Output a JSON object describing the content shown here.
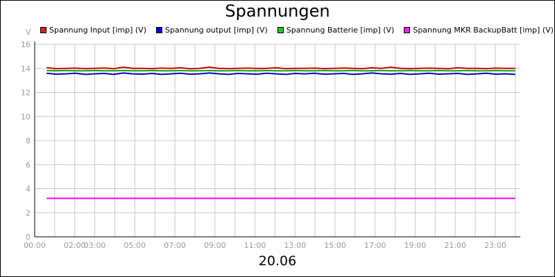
{
  "chart_data": {
    "type": "line",
    "title": "Spannungen",
    "ylabel": "V",
    "xlabel": "20.06",
    "ylim": [
      0,
      16
    ],
    "y_ticks": [
      "0",
      "2",
      "4",
      "6",
      "8",
      "10",
      "12",
      "14",
      "16"
    ],
    "x_ticks": [
      "00:00",
      "02:00",
      "03:00",
      "05:00",
      "07:00",
      "09:00",
      "11:00",
      "13:00",
      "15:00",
      "17:00",
      "19:00",
      "21:00",
      "23:00"
    ],
    "x_tick_hours": [
      0,
      2,
      3,
      5,
      7,
      9,
      11,
      13,
      15,
      17,
      19,
      21,
      23
    ],
    "x_range_hours": [
      0,
      24.25
    ],
    "grid": true,
    "legend_position": "top",
    "series": [
      {
        "name": "Spannung Input [imp] (V)",
        "color": "#cc0000",
        "values": [
          14.05,
          13.98,
          14.0,
          14.02,
          13.98,
          14.0,
          14.03,
          13.97,
          14.1,
          14.0,
          14.0,
          13.98,
          14.02,
          14.0,
          14.05,
          13.97,
          14.0,
          14.1,
          14.0,
          13.98,
          14.0,
          14.02,
          13.99,
          14.0,
          14.05,
          13.98,
          14.0,
          14.0,
          14.02,
          13.98,
          14.0,
          14.03,
          14.0,
          13.98,
          14.05,
          14.0,
          14.1,
          14.0,
          13.98,
          14.0,
          14.02,
          14.0,
          13.97,
          14.05,
          14.0,
          14.0,
          13.98,
          14.02,
          14.0,
          14.0
        ]
      },
      {
        "name": "Spannung output [imp] (V)",
        "color": "#0000cc",
        "values": [
          13.6,
          13.52,
          13.55,
          13.6,
          13.5,
          13.55,
          13.58,
          13.5,
          13.62,
          13.55,
          13.52,
          13.58,
          13.5,
          13.55,
          13.6,
          13.52,
          13.55,
          13.62,
          13.55,
          13.5,
          13.58,
          13.55,
          13.52,
          13.6,
          13.55,
          13.5,
          13.58,
          13.55,
          13.6,
          13.52,
          13.55,
          13.58,
          13.5,
          13.55,
          13.62,
          13.55,
          13.52,
          13.58,
          13.5,
          13.55,
          13.6,
          13.52,
          13.55,
          13.58,
          13.5,
          13.55,
          13.6,
          13.52,
          13.55,
          13.5
        ]
      },
      {
        "name": "Spannung Batterie [imp] (V)",
        "color": "#00aa00",
        "values": [
          13.82,
          13.8,
          13.82,
          13.8,
          13.8,
          13.82,
          13.8,
          13.8,
          13.82,
          13.8,
          13.8,
          13.82,
          13.8,
          13.8,
          13.82,
          13.8,
          13.8,
          13.82,
          13.8,
          13.8,
          13.82,
          13.8,
          13.8,
          13.82,
          13.8,
          13.8,
          13.82,
          13.8,
          13.8,
          13.82,
          13.8,
          13.8,
          13.82,
          13.8,
          13.8,
          13.82,
          13.8,
          13.8,
          13.82,
          13.8,
          13.8,
          13.82,
          13.8,
          13.8,
          13.82,
          13.8,
          13.8,
          13.82,
          13.8,
          13.8
        ]
      },
      {
        "name": "Spannung MKR BackupBatt [imp] (V)",
        "color": "#ff00ff",
        "values": [
          3.2,
          3.2,
          3.2,
          3.2,
          3.2,
          3.2,
          3.2,
          3.2,
          3.2,
          3.2,
          3.2,
          3.2,
          3.2,
          3.2,
          3.2,
          3.2,
          3.2,
          3.2,
          3.2,
          3.2,
          3.2,
          3.2,
          3.2,
          3.2,
          3.2,
          3.2,
          3.2,
          3.2,
          3.2,
          3.2,
          3.2,
          3.2,
          3.2,
          3.2,
          3.2,
          3.2,
          3.2,
          3.2,
          3.2,
          3.2,
          3.2,
          3.2,
          3.2,
          3.2,
          3.2,
          3.2,
          3.2,
          3.2,
          3.2,
          3.2
        ]
      }
    ],
    "legend_swatch_colors": [
      "#dd2222",
      "#0000dd",
      "#22cc22",
      "#ee22ee"
    ]
  }
}
